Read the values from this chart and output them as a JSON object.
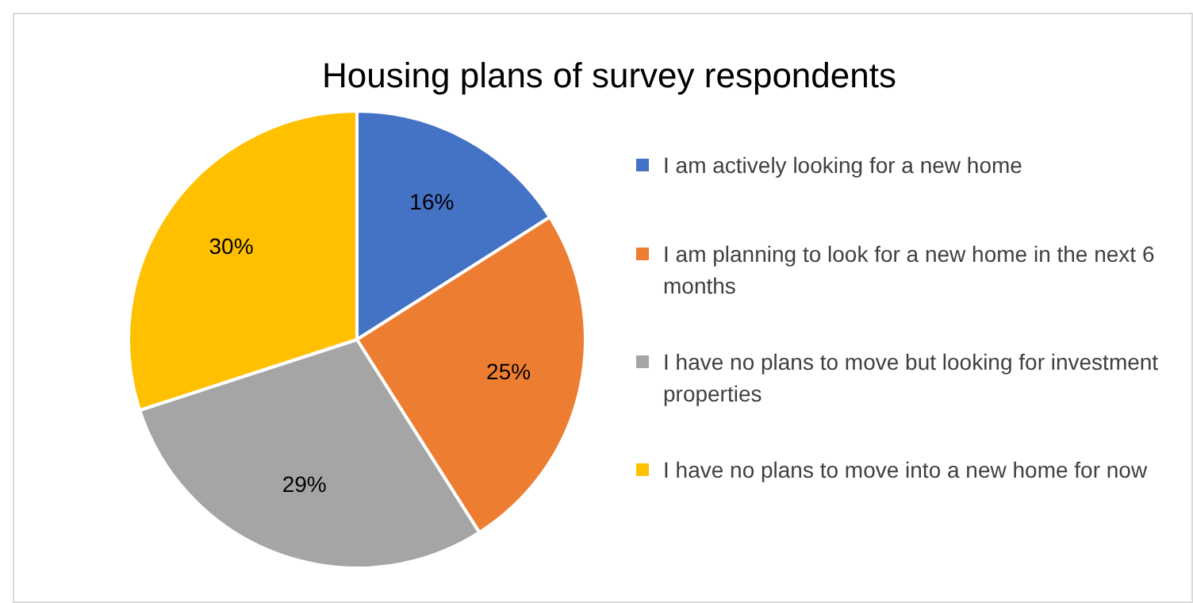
{
  "chart_data": {
    "type": "pie",
    "title": "Housing plans of survey respondents",
    "categories": [
      "I am actively looking for a new home",
      "I am planning to look for a new home in the next 6 months",
      "I have no plans to move but looking for investment properties",
      "I have no plans to move into a new home for now"
    ],
    "values": [
      16,
      25,
      29,
      30
    ],
    "value_labels": [
      "16%",
      "25%",
      "29%",
      "30%"
    ],
    "colors": [
      "#4472c4",
      "#ed7d31",
      "#a5a5a5",
      "#ffc000"
    ],
    "legend": "right"
  }
}
